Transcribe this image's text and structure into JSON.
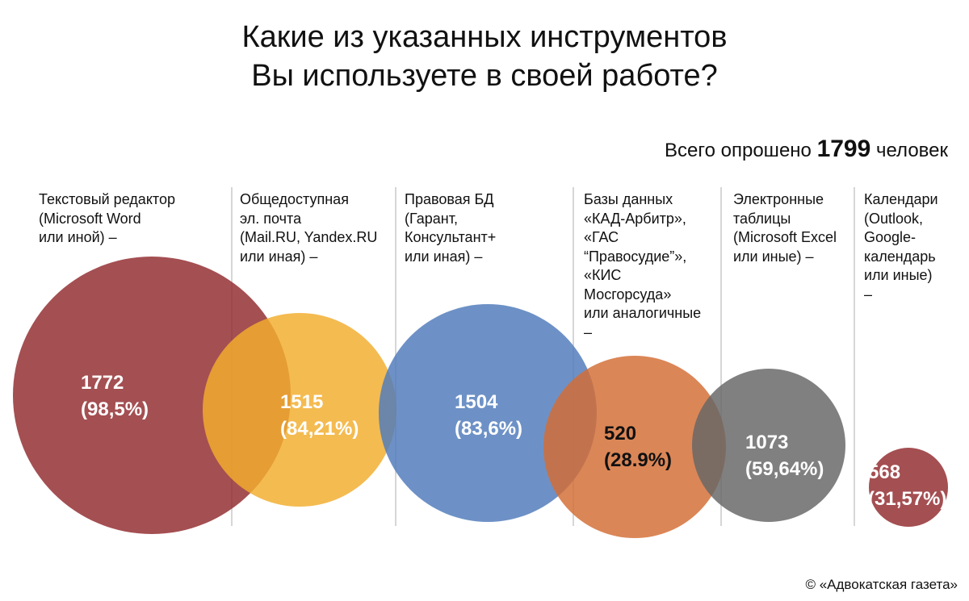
{
  "title_lines": [
    "Какие из указанных инструментов",
    "Вы используете в своей работе?"
  ],
  "total": {
    "prefix": "Всего опрошено",
    "value": "1799",
    "suffix": "человек"
  },
  "copyright": "© «Адвокатская газета»",
  "colors": {
    "word": "#922b2f",
    "mail": "#f2ad2e",
    "legal_db": "#4f7bba",
    "court_db": "#d46d35",
    "spreadsheets": "#666666",
    "calendars": "#922b2f"
  },
  "chart_data": {
    "type": "bubble",
    "total_respondents": 1799,
    "title": "Какие из указанных инструментов Вы используете в своей работе?",
    "categories": [
      "Текстовый редактор (Microsoft Word или иной) –",
      "Общедоступная эл. почта (Mail.RU, Yandex.RU или иная) –",
      "Правовая БД (Гарант, Консультант+ или иная) –",
      "Базы данных «КАД-Арбитр», «ГАС “Правосудие”», «КИС Мосгорсуда» или аналогичные –",
      "Электронные таблицы (Microsoft Excel или иные) –",
      "Календари (Outlook, Google-календарь или иные) –"
    ],
    "items": [
      {
        "label": "Текстовый редактор\n(Microsoft Word\nили иной)  –",
        "count": "1772",
        "percent": "(98,5%)",
        "value": 1772,
        "color": "#922b2f",
        "value_text_color": "#ffffff"
      },
      {
        "label": "Общедоступная\nэл. почта\n(Mail.RU, Yandex.RU\nили иная)  –",
        "count": "1515",
        "percent": "(84,21%)",
        "value": 1515,
        "color": "#f2ad2e",
        "value_text_color": "#ffffff"
      },
      {
        "label": "Правовая БД\n(Гарант,\nКонсультант+\nили иная)   –",
        "count": "1504",
        "percent": "(83,6%)",
        "value": 1504,
        "color": "#4f7bba",
        "value_text_color": "#ffffff"
      },
      {
        "label": "Базы данных\n«КАД-Арбитр»,\n«ГАС\n“Правосудие”»,\n«КИС\nМосгорсуда»\nили аналогичные\n–",
        "count": "520",
        "percent": "(28.9%)",
        "value": 520,
        "color": "#d46d35",
        "value_text_color": "#111111"
      },
      {
        "label": "Электронные\nтаблицы\n(Microsoft Excel\nили иные) –",
        "count": "1073",
        "percent": "(59,64%)",
        "value": 1073,
        "color": "#666666",
        "value_text_color": "#ffffff"
      },
      {
        "label": "Календари\n(Outlook,\nGoogle-\nкалендарь\nили иные)\n–",
        "count": "568",
        "percent": "(31,57%)",
        "value": 568,
        "color": "#922b2f",
        "value_text_color": "#ffffff"
      }
    ]
  }
}
